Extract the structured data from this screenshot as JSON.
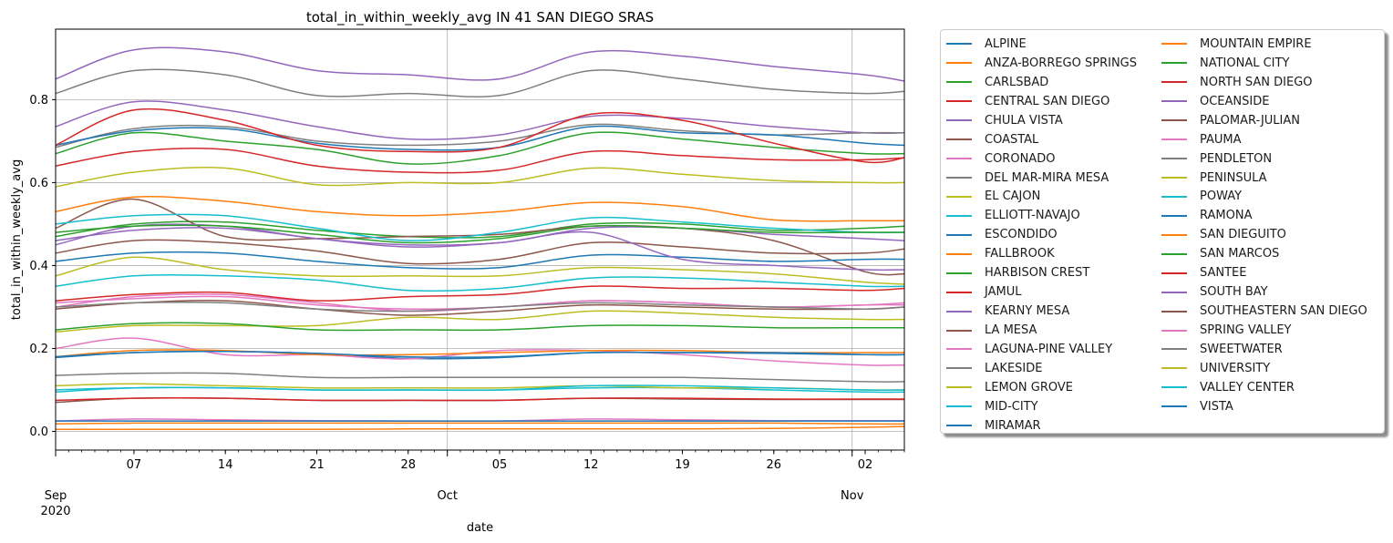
{
  "chart_data": {
    "type": "line",
    "title": "total_in_within_weekly_avg IN 41 SAN DIEGO SRAS",
    "xlabel": "date",
    "ylabel": "total_in_within_weekly_avg",
    "x_range": [
      "2020-09-01",
      "2020-11-05"
    ],
    "ylim": [
      -0.045,
      0.97
    ],
    "y_ticks": [
      "0.0",
      "0.2",
      "0.4",
      "0.6",
      "0.8"
    ],
    "x_major_ticks": [
      {
        "date": "2020-09-01",
        "label": "Sep",
        "sublabel": "2020"
      },
      {
        "date": "2020-10-01",
        "label": "Oct",
        "sublabel": ""
      },
      {
        "date": "2020-11-01",
        "label": "Nov",
        "sublabel": ""
      }
    ],
    "x_minor_ticks": [
      {
        "date": "2020-09-07",
        "label": "07"
      },
      {
        "date": "2020-09-14",
        "label": "14"
      },
      {
        "date": "2020-09-21",
        "label": "21"
      },
      {
        "date": "2020-09-28",
        "label": "28"
      },
      {
        "date": "2020-10-05",
        "label": "05"
      },
      {
        "date": "2020-10-12",
        "label": "12"
      },
      {
        "date": "2020-10-19",
        "label": "19"
      },
      {
        "date": "2020-10-26",
        "label": "26"
      },
      {
        "date": "2020-11-02",
        "label": "02"
      }
    ],
    "grid": "major",
    "legend_position": "outside-right",
    "key_dates": [
      "2020-09-01",
      "2020-09-07",
      "2020-09-14",
      "2020-09-21",
      "2020-09-28",
      "2020-10-05",
      "2020-10-12",
      "2020-10-19",
      "2020-10-26",
      "2020-11-02",
      "2020-11-05"
    ],
    "series": [
      {
        "name": "ALPINE",
        "color": "#1f77b4",
        "values": [
          0.178,
          0.19,
          0.193,
          0.188,
          0.176,
          0.178,
          0.19,
          0.19,
          0.188,
          0.185,
          0.185
        ]
      },
      {
        "name": "ANZA-BORREGO SPRINGS",
        "color": "#ff7f0e",
        "values": [
          0.005,
          0.005,
          0.005,
          0.005,
          0.006,
          0.006,
          0.006,
          0.006,
          0.007,
          0.01,
          0.012
        ]
      },
      {
        "name": "CARLSBAD",
        "color": "#2ca02c",
        "values": [
          0.47,
          0.5,
          0.505,
          0.485,
          0.47,
          0.47,
          0.5,
          0.5,
          0.485,
          0.49,
          0.495
        ]
      },
      {
        "name": "CENTRAL SAN DIEGO",
        "color": "#d62728",
        "values": [
          0.64,
          0.675,
          0.68,
          0.64,
          0.625,
          0.63,
          0.675,
          0.665,
          0.655,
          0.655,
          0.66
        ]
      },
      {
        "name": "CHULA VISTA",
        "color": "#9467bd",
        "values": [
          0.735,
          0.795,
          0.775,
          0.735,
          0.705,
          0.715,
          0.76,
          0.755,
          0.735,
          0.72,
          0.72
        ]
      },
      {
        "name": "COASTAL",
        "color": "#8c564b",
        "values": [
          0.49,
          0.56,
          0.47,
          0.465,
          0.47,
          0.475,
          0.495,
          0.49,
          0.46,
          0.385,
          0.38
        ]
      },
      {
        "name": "CORONADO",
        "color": "#e377c2",
        "values": [
          0.3,
          0.325,
          0.33,
          0.31,
          0.29,
          0.3,
          0.315,
          0.31,
          0.3,
          0.305,
          0.31
        ]
      },
      {
        "name": "DEL MAR-MIRA MESA",
        "color": "#7f7f7f",
        "values": [
          0.685,
          0.73,
          0.735,
          0.7,
          0.69,
          0.7,
          0.74,
          0.725,
          0.715,
          0.72,
          0.72
        ]
      },
      {
        "name": "EL CAJON",
        "color": "#bcbd22",
        "values": [
          0.375,
          0.42,
          0.39,
          0.375,
          0.375,
          0.375,
          0.395,
          0.39,
          0.38,
          0.36,
          0.355
        ]
      },
      {
        "name": "ELLIOTT-NAVAJO",
        "color": "#17becf",
        "values": [
          0.5,
          0.52,
          0.52,
          0.49,
          0.46,
          0.48,
          0.515,
          0.505,
          0.49,
          0.48,
          0.48
        ]
      },
      {
        "name": "ESCONDIDO",
        "color": "#1f77b4",
        "values": [
          0.41,
          0.43,
          0.43,
          0.41,
          0.395,
          0.395,
          0.425,
          0.42,
          0.41,
          0.415,
          0.415
        ]
      },
      {
        "name": "FALLBROOK",
        "color": "#ff7f0e",
        "values": [
          0.53,
          0.565,
          0.555,
          0.53,
          0.52,
          0.53,
          0.552,
          0.542,
          0.51,
          0.508,
          0.508
        ]
      },
      {
        "name": "HARBISON CREST",
        "color": "#2ca02c",
        "values": [
          0.67,
          0.72,
          0.7,
          0.68,
          0.645,
          0.665,
          0.72,
          0.705,
          0.685,
          0.67,
          0.67
        ]
      },
      {
        "name": "JAMUL",
        "color": "#d62728",
        "values": [
          0.315,
          0.33,
          0.335,
          0.315,
          0.325,
          0.33,
          0.35,
          0.345,
          0.345,
          0.34,
          0.345
        ]
      },
      {
        "name": "KEARNY MESA",
        "color": "#9467bd",
        "values": [
          0.45,
          0.495,
          0.495,
          0.465,
          0.45,
          0.455,
          0.49,
          0.49,
          0.475,
          0.465,
          0.46
        ]
      },
      {
        "name": "LA MESA",
        "color": "#8c564b",
        "values": [
          0.43,
          0.46,
          0.455,
          0.435,
          0.405,
          0.415,
          0.455,
          0.445,
          0.43,
          0.43,
          0.44
        ]
      },
      {
        "name": "LAGUNA-PINE VALLEY",
        "color": "#e377c2",
        "values": [
          0.2,
          0.225,
          0.185,
          0.185,
          0.175,
          0.195,
          0.195,
          0.185,
          0.17,
          0.16,
          0.16
        ]
      },
      {
        "name": "LAKESIDE",
        "color": "#7f7f7f",
        "values": [
          0.135,
          0.14,
          0.14,
          0.13,
          0.13,
          0.13,
          0.13,
          0.13,
          0.125,
          0.12,
          0.12
        ]
      },
      {
        "name": "LEMON GROVE",
        "color": "#bcbd22",
        "values": [
          0.24,
          0.255,
          0.255,
          0.255,
          0.275,
          0.27,
          0.29,
          0.285,
          0.275,
          0.27,
          0.27
        ]
      },
      {
        "name": "MID-CITY",
        "color": "#17becf",
        "values": [
          0.35,
          0.375,
          0.375,
          0.365,
          0.34,
          0.345,
          0.37,
          0.37,
          0.36,
          0.35,
          0.35
        ]
      },
      {
        "name": "MIRAMAR",
        "color": "#1f77b4",
        "values": [
          0.69,
          0.725,
          0.73,
          0.695,
          0.68,
          0.685,
          0.735,
          0.72,
          0.715,
          0.695,
          0.69
        ]
      },
      {
        "name": "MOUNTAIN EMPIRE",
        "color": "#ff7f0e",
        "values": [
          0.018,
          0.02,
          0.02,
          0.02,
          0.02,
          0.02,
          0.02,
          0.02,
          0.02,
          0.018,
          0.018
        ]
      },
      {
        "name": "NATIONAL CITY",
        "color": "#2ca02c",
        "values": [
          0.245,
          0.26,
          0.26,
          0.245,
          0.245,
          0.245,
          0.255,
          0.255,
          0.25,
          0.25,
          0.25
        ]
      },
      {
        "name": "NORTH SAN DIEGO",
        "color": "#d62728",
        "values": [
          0.69,
          0.775,
          0.75,
          0.69,
          0.675,
          0.685,
          0.765,
          0.75,
          0.695,
          0.65,
          0.66
        ]
      },
      {
        "name": "OCEANSIDE",
        "color": "#9467bd",
        "values": [
          0.85,
          0.92,
          0.915,
          0.87,
          0.86,
          0.85,
          0.915,
          0.905,
          0.88,
          0.86,
          0.845
        ]
      },
      {
        "name": "PALOMAR-JULIAN",
        "color": "#8c564b",
        "values": [
          0.07,
          0.08,
          0.08,
          0.075,
          0.075,
          0.075,
          0.08,
          0.078,
          0.077,
          0.077,
          0.077
        ]
      },
      {
        "name": "PAUMA",
        "color": "#e377c2",
        "values": [
          0.025,
          0.03,
          0.028,
          0.026,
          0.025,
          0.025,
          0.03,
          0.028,
          0.026,
          0.026,
          0.026
        ]
      },
      {
        "name": "PENDLETON",
        "color": "#7f7f7f",
        "values": [
          0.815,
          0.87,
          0.86,
          0.81,
          0.815,
          0.81,
          0.87,
          0.85,
          0.825,
          0.815,
          0.82
        ]
      },
      {
        "name": "PENINSULA",
        "color": "#bcbd22",
        "values": [
          0.59,
          0.625,
          0.635,
          0.595,
          0.6,
          0.6,
          0.635,
          0.62,
          0.605,
          0.6,
          0.6
        ]
      },
      {
        "name": "POWAY",
        "color": "#17becf",
        "values": [
          0.095,
          0.105,
          0.105,
          0.1,
          0.1,
          0.1,
          0.105,
          0.105,
          0.1,
          0.095,
          0.095
        ]
      },
      {
        "name": "RAMONA",
        "color": "#1f77b4",
        "values": [
          0.025,
          0.025,
          0.025,
          0.025,
          0.025,
          0.025,
          0.025,
          0.025,
          0.025,
          0.025,
          0.025
        ]
      },
      {
        "name": "SAN DIEGUITO",
        "color": "#ff7f0e",
        "values": [
          0.18,
          0.195,
          0.195,
          0.185,
          0.185,
          0.19,
          0.195,
          0.195,
          0.19,
          0.19,
          0.19
        ]
      },
      {
        "name": "SAN MARCOS",
        "color": "#2ca02c",
        "values": [
          0.48,
          0.495,
          0.495,
          0.475,
          0.455,
          0.465,
          0.495,
          0.49,
          0.48,
          0.48,
          0.48
        ]
      },
      {
        "name": "SANTEE",
        "color": "#d62728",
        "values": [
          0.075,
          0.08,
          0.08,
          0.075,
          0.075,
          0.075,
          0.08,
          0.08,
          0.078,
          0.078,
          0.078
        ]
      },
      {
        "name": "SOUTH BAY",
        "color": "#9467bd",
        "values": [
          0.46,
          0.485,
          0.49,
          0.465,
          0.445,
          0.455,
          0.48,
          0.415,
          0.4,
          0.39,
          0.39
        ]
      },
      {
        "name": "SOUTHEASTERN SAN DIEGO",
        "color": "#8c564b",
        "values": [
          0.295,
          0.31,
          0.315,
          0.295,
          0.28,
          0.29,
          0.305,
          0.3,
          0.295,
          0.295,
          0.3
        ]
      },
      {
        "name": "SPRING VALLEY",
        "color": "#e377c2",
        "values": [
          0.31,
          0.32,
          0.325,
          0.305,
          0.295,
          0.3,
          0.315,
          0.31,
          0.3,
          0.305,
          0.305
        ]
      },
      {
        "name": "SWEETWATER",
        "color": "#7f7f7f",
        "values": [
          0.3,
          0.31,
          0.31,
          0.295,
          0.29,
          0.3,
          0.31,
          0.305,
          0.3,
          0.295,
          0.3
        ]
      },
      {
        "name": "UNIVERSITY",
        "color": "#bcbd22",
        "values": [
          0.11,
          0.115,
          0.11,
          0.105,
          0.105,
          0.105,
          0.11,
          0.105,
          0.105,
          0.1,
          0.1
        ]
      },
      {
        "name": "VALLEY CENTER",
        "color": "#17becf",
        "values": [
          0.1,
          0.105,
          0.105,
          0.1,
          0.1,
          0.1,
          0.11,
          0.11,
          0.105,
          0.1,
          0.1
        ]
      },
      {
        "name": "VISTA",
        "color": "#1f77b4",
        "values": [
          0.18,
          0.19,
          0.193,
          0.188,
          0.18,
          0.18,
          0.19,
          0.19,
          0.19,
          0.185,
          0.185
        ]
      }
    ]
  }
}
